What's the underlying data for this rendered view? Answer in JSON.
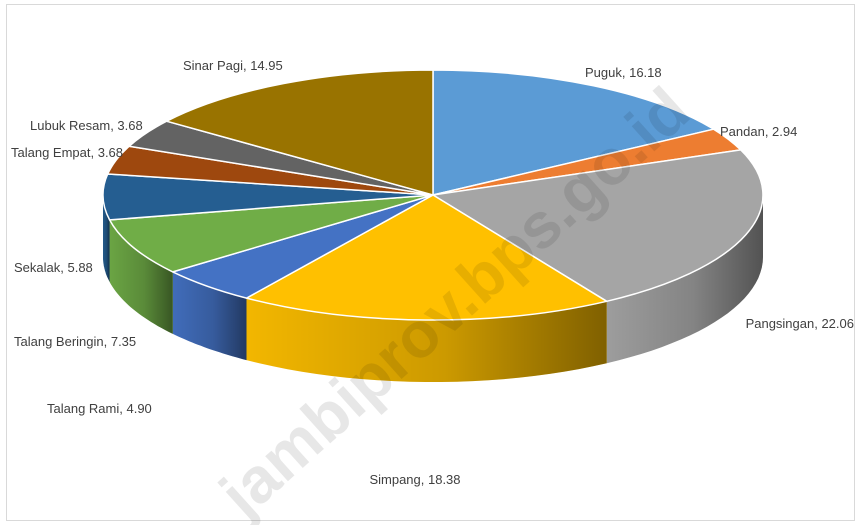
{
  "chart_data": {
    "type": "pie",
    "title": "",
    "slices": [
      {
        "label": "Puguk",
        "display_value": "16.18",
        "value": 16.18,
        "color": "#5b9bd5"
      },
      {
        "label": "Pandan",
        "display_value": "2.94",
        "value": 2.94,
        "color": "#ed7d31"
      },
      {
        "label": "Pangsingan",
        "display_value": "22.06",
        "value": 22.06,
        "color": "#a5a5a5"
      },
      {
        "label": "Simpang",
        "display_value": "18.38",
        "value": 18.38,
        "color": "#ffc000"
      },
      {
        "label": "Talang Rami",
        "display_value": "4.90",
        "value": 4.9,
        "color": "#4472c4"
      },
      {
        "label": "Talang Beringin",
        "display_value": "7.35",
        "value": 7.35,
        "color": "#70ad47"
      },
      {
        "label": "Sekalak",
        "display_value": "5.88",
        "value": 5.88,
        "color": "#255e91"
      },
      {
        "label": "Talang Empat",
        "display_value": "3.68",
        "value": 3.68,
        "color": "#9e480e"
      },
      {
        "label": "Lubuk Resam",
        "display_value": "3.68",
        "value": 3.68,
        "color": "#636363"
      },
      {
        "label": "Sinar Pagi",
        "display_value": "14.95",
        "value": 14.95,
        "color": "#997300"
      }
    ],
    "label_separator": ", "
  },
  "watermark": {
    "text": "jambiprov.bps.go.id"
  }
}
